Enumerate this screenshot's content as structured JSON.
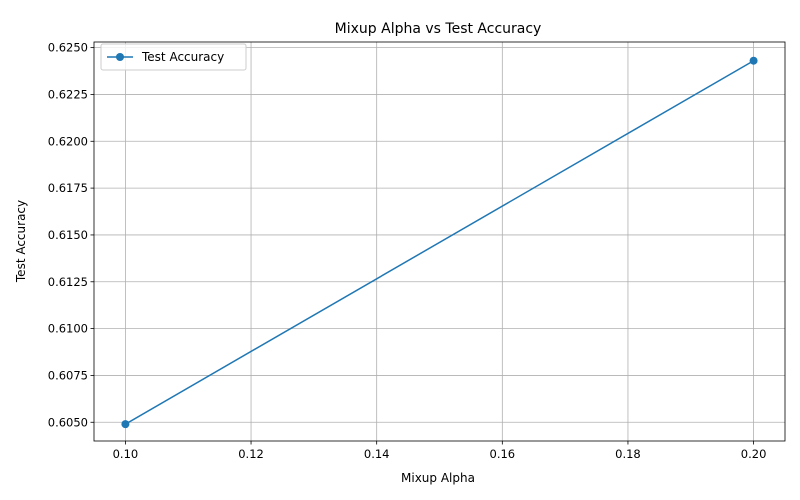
{
  "chart_data": {
    "type": "line",
    "title": "Mixup Alpha vs Test Accuracy",
    "xlabel": "Mixup Alpha",
    "ylabel": "Test Accuracy",
    "xlim": [
      0.095,
      0.205
    ],
    "ylim": [
      0.604,
      0.6253
    ],
    "xticks": [
      0.1,
      0.12,
      0.14,
      0.16,
      0.18,
      0.2
    ],
    "xtick_labels": [
      "0.10",
      "0.12",
      "0.14",
      "0.16",
      "0.18",
      "0.20"
    ],
    "yticks": [
      0.605,
      0.6075,
      0.61,
      0.6125,
      0.615,
      0.6175,
      0.62,
      0.6225,
      0.625
    ],
    "ytick_labels": [
      "0.6050",
      "0.6075",
      "0.6100",
      "0.6125",
      "0.6150",
      "0.6175",
      "0.6200",
      "0.6225",
      "0.6250"
    ],
    "grid": true,
    "legend_position": "top-left",
    "series": [
      {
        "name": "Test Accuracy",
        "color": "#1f77b4",
        "marker": "circle",
        "x": [
          0.1,
          0.2
        ],
        "y": [
          0.6049,
          0.6243
        ]
      }
    ]
  }
}
